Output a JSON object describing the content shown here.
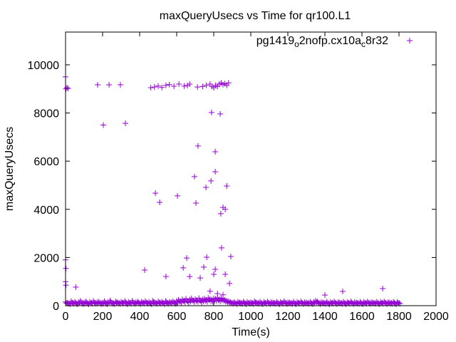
{
  "chart_data": {
    "type": "scatter",
    "title": "maxQueryUsecs vs Time for qr100.L1",
    "xlabel": "Time(s)",
    "ylabel": "maxQueryUsecs",
    "xlim": [
      0,
      2000
    ],
    "ylim": [
      0,
      11360
    ],
    "xticks": [
      0,
      200,
      400,
      600,
      800,
      1000,
      1200,
      1400,
      1600,
      1800,
      2000
    ],
    "yticks": [
      0,
      2000,
      4000,
      6000,
      8000,
      10000
    ],
    "grid": false,
    "legend_placement": "top-right",
    "marker": "plus",
    "color": "#9400d3",
    "series": [
      {
        "name": "pg1419_o2nofp.cx10a_c8r32",
        "baseline": {
          "x_start": 0,
          "x_step": 10,
          "y": [
            150,
            120,
            90,
            180,
            110,
            160,
            80,
            140,
            200,
            100,
            130,
            170,
            90,
            150,
            120,
            190,
            110,
            140,
            160,
            100,
            130,
            180,
            90,
            150,
            210,
            120,
            100,
            170,
            140,
            110,
            160,
            130,
            190,
            90,
            150,
            120,
            200,
            110,
            140,
            170,
            100,
            160,
            130,
            180,
            120,
            150,
            90,
            200,
            140,
            110,
            170,
            130,
            160,
            100,
            190,
            120,
            150,
            140,
            180,
            110,
            200,
            240,
            180,
            260,
            210,
            280,
            190,
            250,
            300,
            220,
            270,
            230,
            310,
            200,
            260,
            290,
            240,
            320,
            270,
            250,
            300,
            280,
            330,
            260,
            310,
            290,
            240,
            200,
            180,
            150,
            120,
            140,
            100,
            160,
            130,
            110,
            170,
            90,
            150,
            120,
            140,
            100,
            180,
            130,
            110,
            160,
            90,
            150,
            120,
            170,
            100,
            140,
            130,
            110,
            160,
            90,
            150,
            120,
            180,
            100,
            140,
            130,
            110,
            160,
            90,
            150,
            120,
            170,
            100,
            140,
            130,
            110,
            160,
            90,
            150,
            200,
            170,
            100,
            140,
            130,
            110,
            160,
            90,
            150,
            120,
            170,
            100,
            140,
            130,
            110,
            160,
            90,
            150,
            120,
            170,
            100,
            140,
            130,
            110,
            160,
            90,
            150,
            120,
            170,
            100,
            140,
            130,
            110,
            160,
            90,
            150,
            120,
            170,
            100,
            140,
            130,
            110,
            160,
            90,
            150,
            120
          ]
        },
        "points": [
          [
            0,
            9500
          ],
          [
            2,
            9000
          ],
          [
            8,
            9050
          ],
          [
            14,
            9020
          ],
          [
            0,
            1900
          ],
          [
            2,
            1550
          ],
          [
            0,
            1000
          ],
          [
            2,
            850
          ],
          [
            55,
            770
          ],
          [
            173,
            9170
          ],
          [
            235,
            9170
          ],
          [
            296,
            9170
          ],
          [
            204,
            7500
          ],
          [
            323,
            7570
          ],
          [
            427,
            1480
          ],
          [
            460,
            9050
          ],
          [
            480,
            9080
          ],
          [
            500,
            9120
          ],
          [
            520,
            9060
          ],
          [
            542,
            9150
          ],
          [
            560,
            9180
          ],
          [
            585,
            9110
          ],
          [
            612,
            9200
          ],
          [
            640,
            9120
          ],
          [
            658,
            9140
          ],
          [
            670,
            9200
          ],
          [
            485,
            4670
          ],
          [
            508,
            4290
          ],
          [
            542,
            1210
          ],
          [
            604,
            4560
          ],
          [
            635,
            1570
          ],
          [
            654,
            1980
          ],
          [
            670,
            1210
          ],
          [
            696,
            5360
          ],
          [
            704,
            4260
          ],
          [
            712,
            9080
          ],
          [
            715,
            6630
          ],
          [
            727,
            1150
          ],
          [
            746,
            1600
          ],
          [
            758,
            4910
          ],
          [
            762,
            2010
          ],
          [
            740,
            9100
          ],
          [
            760,
            9150
          ],
          [
            780,
            9200
          ],
          [
            790,
            9100
          ],
          [
            800,
            9050
          ],
          [
            810,
            9150
          ],
          [
            820,
            9100
          ],
          [
            830,
            9200
          ],
          [
            840,
            9250
          ],
          [
            850,
            9180
          ],
          [
            860,
            9220
          ],
          [
            870,
            9150
          ],
          [
            880,
            9250
          ],
          [
            785,
            5180
          ],
          [
            788,
            8020
          ],
          [
            808,
            6390
          ],
          [
            808,
            5560
          ],
          [
            808,
            1510
          ],
          [
            800,
            1300
          ],
          [
            835,
            7960
          ],
          [
            838,
            3820
          ],
          [
            842,
            2400
          ],
          [
            850,
            4080
          ],
          [
            862,
            4000
          ],
          [
            870,
            4970
          ],
          [
            862,
            1300
          ],
          [
            885,
            920
          ],
          [
            892,
            2040
          ],
          [
            780,
            600
          ],
          [
            820,
            500
          ],
          [
            850,
            450
          ],
          [
            1400,
            440
          ],
          [
            1496,
            590
          ],
          [
            1712,
            710
          ]
        ]
      }
    ]
  }
}
